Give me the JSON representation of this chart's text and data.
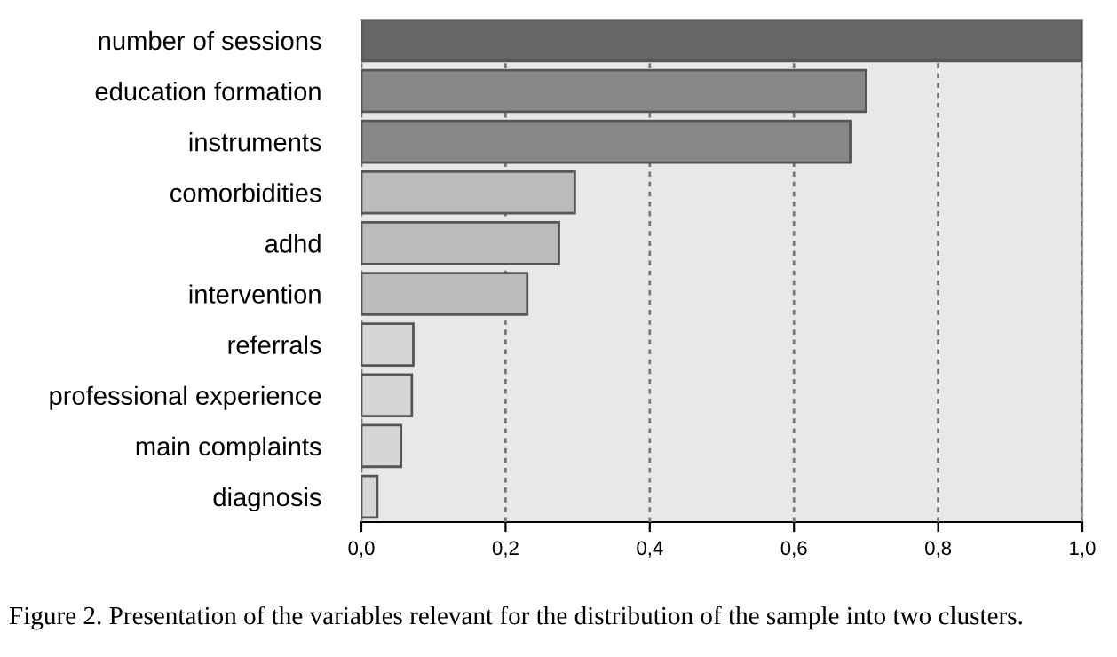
{
  "chart_data": {
    "type": "bar",
    "orientation": "horizontal",
    "categories": [
      "number of sessions",
      "education formation",
      "instruments",
      "comorbidities",
      "adhd",
      "intervention",
      "referrals",
      "professional experience",
      "main complaints",
      "diagnosis"
    ],
    "values": [
      1.0,
      0.7,
      0.678,
      0.296,
      0.274,
      0.23,
      0.072,
      0.07,
      0.055,
      0.022
    ],
    "colors": [
      "#666666",
      "#888888",
      "#888888",
      "#bbbbbb",
      "#bbbbbb",
      "#bbbbbb",
      "#d6d6d6",
      "#d6d6d6",
      "#d6d6d6",
      "#d6d6d6"
    ],
    "xlim": [
      0,
      1.0
    ],
    "xticks": [
      {
        "value": 0,
        "label": "0,0"
      },
      {
        "value": 0.2,
        "label": "0,2"
      },
      {
        "value": 0.4,
        "label": "0,4"
      },
      {
        "value": 0.6,
        "label": "0,6"
      },
      {
        "value": 0.8,
        "label": "0,8"
      },
      {
        "value": 1.0,
        "label": "1,0"
      }
    ],
    "grid": "x",
    "annotations": [
      "Figure 2. Presentation of the variables relevant for the distribution of the sample into two clusters."
    ]
  }
}
